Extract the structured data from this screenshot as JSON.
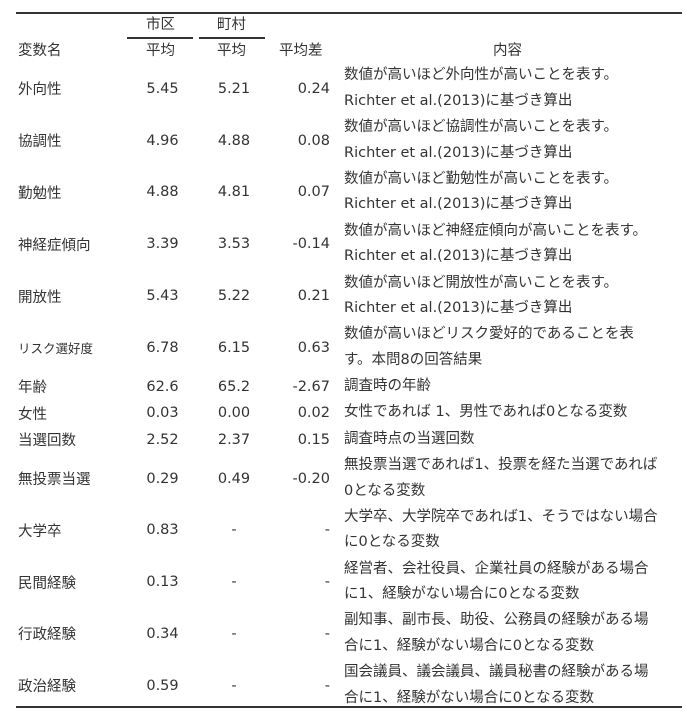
{
  "header": {
    "group_city": "市区",
    "group_town": "町村",
    "var_name": "変数名",
    "mean_city": "平均",
    "mean_town": "平均",
    "mean_diff": "平均差",
    "content": "内容"
  },
  "rows": [
    {
      "name": "外向性",
      "city": "5.45",
      "town": "5.21",
      "diff": "0.24",
      "desc": [
        "数値が高いほど外向性が高いことを表す。",
        "Richter et al.(2013)に基づき算出"
      ]
    },
    {
      "name": "協調性",
      "city": "4.96",
      "town": "4.88",
      "diff": "0.08",
      "desc": [
        "数値が高いほど協調性が高いことを表す。",
        "Richter et al.(2013)に基づき算出"
      ]
    },
    {
      "name": "勤勉性",
      "city": "4.88",
      "town": "4.81",
      "diff": "0.07",
      "desc": [
        "数値が高いほど勤勉性が高いことを表す。",
        "Richter et al.(2013)に基づき算出"
      ]
    },
    {
      "name": "神経症傾向",
      "city": "3.39",
      "town": "3.53",
      "diff": "-0.14",
      "desc": [
        "数値が高いほど神経症傾向が高いことを表す。",
        "Richter et al.(2013)に基づき算出"
      ]
    },
    {
      "name": "開放性",
      "city": "5.43",
      "town": "5.22",
      "diff": "0.21",
      "desc": [
        "数値が高いほど開放性が高いことを表す。",
        "Richter et al.(2013)に基づき算出"
      ]
    },
    {
      "name": "リスク選好度",
      "city": "6.78",
      "town": "6.15",
      "diff": "0.63",
      "desc": [
        "数値が高いほどリスク愛好的であることを表",
        "す。本問8の回答結果"
      ]
    },
    {
      "name": "年齢",
      "city": "62.6",
      "town": "65.2",
      "diff": "-2.67",
      "desc": [
        "調査時の年齢"
      ]
    },
    {
      "name": "女性",
      "city": "0.03",
      "town": "0.00",
      "diff": "0.02",
      "desc": [
        "女性であれば 1、男性であれば0となる変数"
      ]
    },
    {
      "name": "当選回数",
      "city": "2.52",
      "town": "2.37",
      "diff": "0.15",
      "desc": [
        "調査時点の当選回数"
      ]
    },
    {
      "name": "無投票当選",
      "city": "0.29",
      "town": "0.49",
      "diff": "-0.20",
      "desc": [
        "無投票当選であれば1、投票を経た当選であれば",
        "0となる変数"
      ]
    },
    {
      "name": "大学卒",
      "city": "0.83",
      "town": "-",
      "diff": "-",
      "desc": [
        "大学卒、大学院卒であれば1、そうではない場合",
        "に0となる変数"
      ]
    },
    {
      "name": "民間経験",
      "city": "0.13",
      "town": "-",
      "diff": "-",
      "desc": [
        "経営者、会社役員、企業社員の経験がある場合",
        "に1、経験がない場合に0となる変数"
      ]
    },
    {
      "name": "行政経験",
      "city": "0.34",
      "town": "-",
      "diff": "-",
      "desc": [
        "副知事、副市長、助役、公務員の経験がある場",
        "合に1、経験がない場合に0となる変数"
      ]
    },
    {
      "name": "政治経験",
      "city": "0.59",
      "town": "-",
      "diff": "-",
      "desc": [
        "国会議員、議会議員、議員秘書の経験がある場",
        "合に1、経験がない場合に0となる変数"
      ]
    }
  ]
}
